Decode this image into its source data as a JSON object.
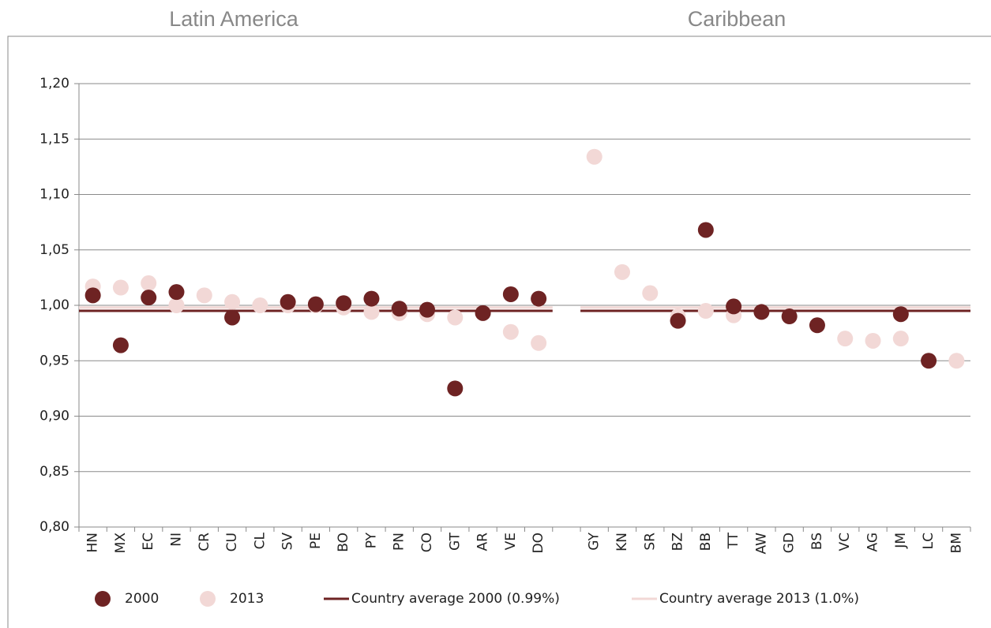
{
  "chart_data": {
    "type": "scatter",
    "group_labels": [
      "Latin America",
      "Caribbean"
    ],
    "categories": [
      "HN",
      "MX",
      "EC",
      "NI",
      "CR",
      "CU",
      "CL",
      "SV",
      "PE",
      "BO",
      "PY",
      "PN",
      "CO",
      "GT",
      "AR",
      "VE",
      "DO",
      null,
      "GY",
      "KN",
      "SR",
      "BZ",
      "BB",
      "TT",
      "AW",
      "GD",
      "BS",
      "VC",
      "AG",
      "JM",
      "LC",
      "BM"
    ],
    "series": [
      {
        "name": "2000",
        "color": "#6e2323",
        "values": [
          1.009,
          0.964,
          1.007,
          1.012,
          null,
          0.989,
          null,
          1.003,
          1.001,
          1.002,
          1.006,
          0.997,
          0.996,
          0.925,
          0.993,
          1.01,
          1.006,
          null,
          null,
          null,
          null,
          0.986,
          1.068,
          0.999,
          0.994,
          0.99,
          0.982,
          null,
          null,
          0.992,
          0.95,
          null
        ]
      },
      {
        "name": "2013",
        "color": "#f2d8d6",
        "values": [
          1.017,
          1.016,
          1.02,
          1.0,
          1.009,
          1.003,
          1.0,
          1.0,
          1.0,
          0.998,
          0.994,
          0.993,
          0.992,
          0.989,
          null,
          0.976,
          0.966,
          null,
          1.134,
          1.03,
          1.011,
          0.99,
          0.995,
          0.991,
          null,
          null,
          null,
          0.97,
          0.968,
          0.97,
          null,
          0.95
        ]
      },
      {
        "name": "Country average 2000 (0.99%)",
        "type": "line",
        "color": "#6e2323",
        "values": [
          0.995,
          0.995,
          0.995,
          0.995,
          0.995,
          0.995,
          0.995,
          0.995,
          0.995,
          0.995,
          0.995,
          0.995,
          0.995,
          0.995,
          0.995,
          0.995,
          0.995,
          null,
          0.995,
          0.995,
          0.995,
          0.995,
          0.995,
          0.995,
          0.995,
          0.995,
          0.995,
          0.995,
          0.995,
          0.995,
          0.995,
          0.995
        ]
      },
      {
        "name": "Country average 2013 (1.0%)",
        "type": "line",
        "color": "#f2d8d6",
        "values": [
          0.998,
          0.998,
          0.998,
          0.998,
          0.998,
          0.998,
          0.998,
          0.998,
          0.998,
          0.998,
          0.998,
          0.998,
          0.998,
          0.998,
          0.998,
          0.998,
          0.998,
          null,
          0.998,
          0.998,
          0.998,
          0.998,
          0.998,
          0.998,
          0.998,
          0.998,
          0.998,
          0.998,
          0.998,
          0.998,
          0.998,
          0.998
        ]
      }
    ],
    "ylim": [
      0.8,
      1.2
    ],
    "yticks": [
      {
        "value": 0.8,
        "label": "0,80"
      },
      {
        "value": 0.85,
        "label": "0,85"
      },
      {
        "value": 0.9,
        "label": "0,90"
      },
      {
        "value": 0.95,
        "label": "0,95"
      },
      {
        "value": 1.0,
        "label": "1,00"
      },
      {
        "value": 1.05,
        "label": "1,05"
      },
      {
        "value": 1.1,
        "label": "1,10"
      },
      {
        "value": 1.15,
        "label": "1,15"
      },
      {
        "value": 1.2,
        "label": "1,20"
      }
    ],
    "grid": true,
    "legend": "bottom"
  }
}
